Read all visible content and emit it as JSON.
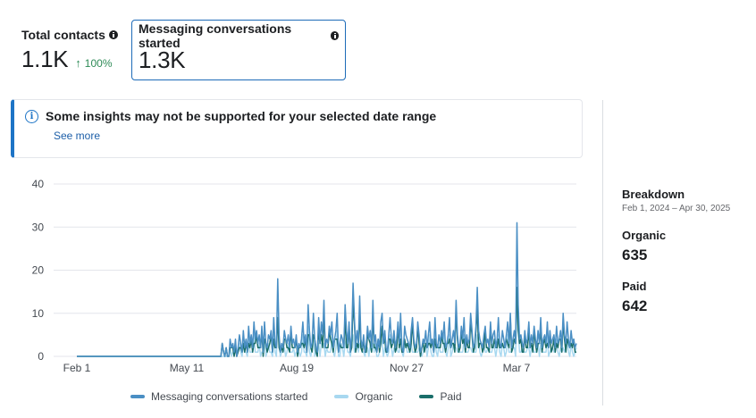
{
  "stats": [
    {
      "label": "Total contacts",
      "value": "1.1K",
      "change": "100%"
    },
    {
      "label": "Messaging conversations started",
      "value": "1.3K"
    }
  ],
  "banner": {
    "title": "Some insights may not be supported for your selected date range",
    "link": "See more"
  },
  "chart_data": {
    "type": "line",
    "ylim": [
      0,
      40
    ],
    "yticks": [
      0,
      10,
      20,
      30,
      40
    ],
    "xticks": [
      "Feb 1",
      "May 11",
      "Aug 19",
      "Nov 27",
      "Mar 7"
    ],
    "x_range": [
      "Feb 1, 2024",
      "Apr 30, 2025"
    ],
    "grid": true,
    "legend_placement": "bottom",
    "series": [
      {
        "name": "Messaging conversations started",
        "color": "#4a8fc4",
        "values": [
          0,
          0,
          0,
          0,
          0,
          0,
          0,
          0,
          0,
          0,
          0,
          0,
          0,
          0,
          0,
          0,
          0,
          0,
          0,
          0,
          0,
          0,
          0,
          0,
          0,
          0,
          0,
          0,
          0,
          0,
          0,
          0,
          0,
          0,
          0,
          0,
          0,
          0,
          0,
          0,
          0,
          0,
          0,
          0,
          0,
          0,
          0,
          0,
          0,
          0,
          0,
          0,
          0,
          0,
          0,
          0,
          0,
          0,
          0,
          0,
          0,
          0,
          0,
          0,
          0,
          0,
          0,
          0,
          0,
          0,
          0,
          0,
          0,
          0,
          0,
          0,
          0,
          0,
          0,
          0,
          0,
          0,
          0,
          0,
          0,
          0,
          0,
          0,
          0,
          0,
          0,
          0,
          0,
          0,
          0,
          0,
          0,
          0,
          0,
          0,
          0,
          0,
          0,
          0,
          0,
          0,
          0,
          0,
          0,
          0,
          3,
          1,
          0,
          2,
          0,
          0,
          4,
          2,
          3,
          1,
          4,
          0,
          2,
          5,
          3,
          1,
          6,
          2,
          4,
          1,
          7,
          3,
          5,
          2,
          8,
          4,
          6,
          3,
          5,
          2,
          7,
          1,
          8,
          3,
          2,
          5,
          4,
          6,
          1,
          9,
          3,
          2,
          18,
          5,
          1,
          3,
          2,
          6,
          4,
          3,
          5,
          2,
          7,
          3,
          4,
          2,
          5,
          1,
          3,
          2,
          4,
          8,
          3,
          5,
          1,
          12,
          6,
          2,
          3,
          10,
          4,
          2,
          1,
          9,
          3,
          8,
          5,
          13,
          2,
          4,
          3,
          7,
          5,
          8,
          2,
          4,
          6,
          10,
          1,
          3,
          5,
          4,
          2,
          12,
          6,
          3,
          8,
          1,
          5,
          17,
          9,
          2,
          6,
          3,
          14,
          4,
          2,
          5,
          1,
          3,
          7,
          4,
          6,
          2,
          13,
          3,
          5,
          1,
          4,
          2,
          8,
          10,
          3,
          6,
          2,
          1,
          5,
          9,
          4,
          3,
          6,
          2,
          4,
          8,
          3,
          10,
          2,
          1,
          7,
          5,
          4,
          3,
          2,
          6,
          9,
          4,
          2,
          3,
          8,
          5,
          1,
          2,
          4,
          3,
          6,
          2,
          5,
          8,
          3,
          4,
          1,
          9,
          3,
          2,
          5,
          3,
          6,
          4,
          8,
          2,
          3,
          5,
          9,
          2,
          4,
          6,
          3,
          13,
          5,
          2,
          3,
          7,
          4,
          9,
          2,
          5,
          3,
          4,
          10,
          6,
          2,
          3,
          7,
          16,
          6,
          4,
          3,
          2,
          5,
          7,
          3,
          4,
          2,
          8,
          3,
          5,
          6,
          2,
          4,
          9,
          3,
          2,
          6,
          4,
          2,
          5,
          8,
          3,
          10,
          2,
          4,
          6,
          3,
          31,
          12,
          4,
          5,
          3,
          2,
          6,
          3,
          4,
          8,
          2,
          5,
          3,
          7,
          4,
          2,
          6,
          3,
          9,
          2,
          4,
          5,
          3,
          8,
          2,
          6,
          3,
          4,
          5,
          2,
          7,
          3,
          4,
          6,
          2,
          10,
          5,
          3,
          8,
          4,
          2,
          6,
          3,
          4,
          2,
          3
        ]
      },
      {
        "name": "Organic",
        "color": "#a8d8f0"
      },
      {
        "name": "Paid",
        "color": "#1a6e6a"
      }
    ]
  },
  "breakdown": {
    "title": "Breakdown",
    "date_range": "Feb 1, 2024 – Apr 30, 2025",
    "items": [
      {
        "label": "Organic",
        "value": "635"
      },
      {
        "label": "Paid",
        "value": "642"
      }
    ]
  }
}
